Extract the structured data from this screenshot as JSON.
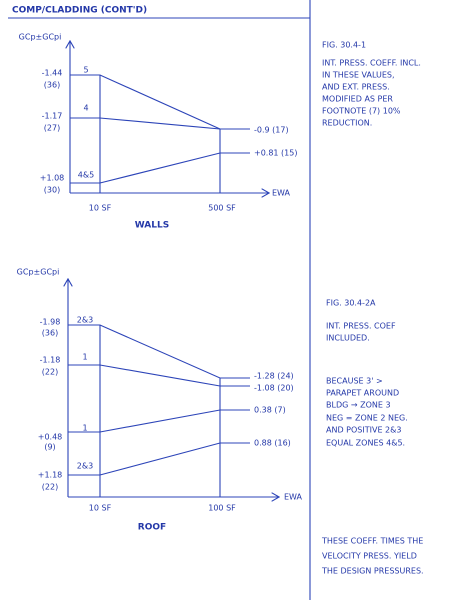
{
  "header": {
    "title": "COMP/CLADDING (CONT'D)"
  },
  "walls": {
    "y_label": "GCp±GCpi",
    "left_labels": [
      [
        "-1.44",
        "(36)"
      ],
      [
        "-1.17",
        "(27)"
      ],
      [
        "+1.08",
        "(30)"
      ]
    ],
    "zone_labels": [
      "5",
      "4",
      "4&5"
    ],
    "right_labels": [
      "-0.9 (17)",
      "+0.81 (15)"
    ],
    "x_labels": [
      "10 SF",
      "500 SF"
    ],
    "x_axis": "EWA",
    "caption": "WALLS"
  },
  "roof": {
    "y_label": "GCp±GCpi",
    "left_labels": [
      [
        "-1.98",
        "(36)"
      ],
      [
        "-1.18",
        "(22)"
      ],
      [
        "+0.48",
        "(9)"
      ],
      [
        "+1.18",
        "(22)"
      ]
    ],
    "zone_labels": [
      "2&3",
      "1",
      "1",
      "2&3"
    ],
    "right_labels": [
      "-1.28 (24)",
      "-1.08 (20)",
      "0.38 (7)",
      "0.88 (16)"
    ],
    "x_labels": [
      "10 SF",
      "100 SF"
    ],
    "x_axis": "EWA",
    "caption": "ROOF"
  },
  "notes": {
    "walls": [
      "FIG. 30.4-1",
      "INT. PRESS. COEFF. INCL.",
      "IN THESE VALUES,",
      "AND EXT. PRESS.",
      "MODIFIED AS PER",
      "FOOTNOTE (7) 10%",
      "REDUCTION."
    ],
    "roof": [
      "FIG. 30.4-2A",
      "INT. PRESS. COEF",
      "INCLUDED.",
      "BECAUSE 3' >",
      "PARAPET AROUND",
      "BLDG → ZONE 3",
      "NEG = ZONE 2 NEG.",
      "AND POSITIVE 2&3",
      "EQUAL ZONES 4&5."
    ],
    "footer": [
      "THESE COEFF. TIMES THE",
      "VELOCITY PRESS. YIELD",
      "THE DESIGN PRESSURES."
    ]
  }
}
